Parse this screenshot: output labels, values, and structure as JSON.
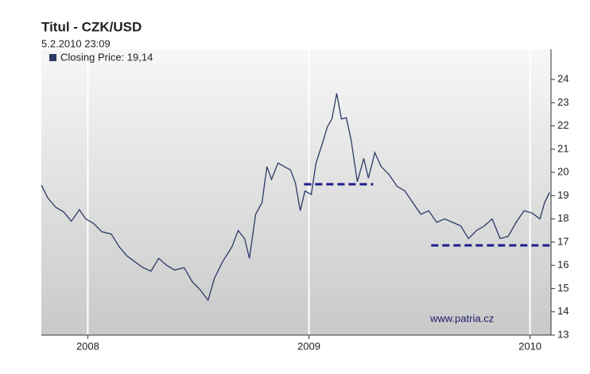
{
  "chart_data": {
    "type": "line",
    "title": "Titul - CZK/USD",
    "subtitle": "5.2.2010 23:09",
    "watermark": "www.patria.cz",
    "x": [
      2007.79,
      2007.819,
      2007.855,
      2007.891,
      2007.926,
      2007.962,
      2007.991,
      2008.027,
      2008.063,
      2008.106,
      2008.142,
      2008.178,
      2008.214,
      2008.25,
      2008.286,
      2008.321,
      2008.357,
      2008.393,
      2008.436,
      2008.472,
      2008.508,
      2008.544,
      2008.573,
      2008.609,
      2008.652,
      2008.68,
      2008.709,
      2008.731,
      2008.759,
      2008.788,
      2008.81,
      2008.831,
      2008.86,
      2008.889,
      2008.917,
      2008.939,
      2008.961,
      2008.982,
      2009.011,
      2009.032,
      2009.061,
      2009.083,
      2009.104,
      2009.126,
      2009.147,
      2009.169,
      2009.19,
      2009.219,
      2009.248,
      2009.269,
      2009.298,
      2009.327,
      2009.363,
      2009.399,
      2009.434,
      2009.47,
      2009.506,
      2009.542,
      2009.578,
      2009.614,
      2009.65,
      2009.686,
      2009.722,
      2009.758,
      2009.794,
      2009.829,
      2009.865,
      2009.901,
      2009.937,
      2009.973,
      2010.009,
      2010.045,
      2010.066,
      2010.088
    ],
    "series": [
      {
        "name": "Closing Price: 19,14",
        "color": "#2b3a66",
        "values": [
          19.45,
          18.9,
          18.5,
          18.3,
          17.9,
          18.4,
          18.0,
          17.8,
          17.45,
          17.35,
          16.8,
          16.4,
          16.15,
          15.9,
          15.75,
          16.3,
          16.0,
          15.8,
          15.9,
          15.3,
          14.95,
          14.5,
          15.45,
          16.15,
          16.8,
          17.5,
          17.15,
          16.3,
          18.2,
          18.7,
          20.25,
          19.7,
          20.4,
          20.25,
          20.1,
          19.55,
          18.35,
          19.2,
          19.05,
          20.4,
          21.25,
          21.95,
          22.3,
          23.4,
          22.3,
          22.35,
          21.45,
          19.6,
          20.6,
          19.75,
          20.85,
          20.25,
          19.9,
          19.4,
          19.2,
          18.7,
          18.2,
          18.35,
          17.85,
          18.0,
          17.85,
          17.7,
          17.15,
          17.5,
          17.7,
          18.0,
          17.15,
          17.25,
          17.85,
          18.35,
          18.25,
          18.0,
          18.7,
          19.14
        ]
      }
    ],
    "levels": [
      {
        "x": [
          2008.978,
          2009.291
        ],
        "y": 19.49,
        "color": "#1c1c8c"
      },
      {
        "x": [
          2009.553,
          2010.095
        ],
        "y": 16.86,
        "color": "#1c1c8c"
      }
    ],
    "xlim": [
      2007.79,
      2010.095
    ],
    "xticks": [
      2008,
      2009,
      2010
    ],
    "ylim": [
      13,
      25.3
    ],
    "yticks": [
      13,
      14,
      15,
      16,
      17,
      18,
      19,
      20,
      21,
      22,
      23,
      24
    ],
    "grid": true
  }
}
